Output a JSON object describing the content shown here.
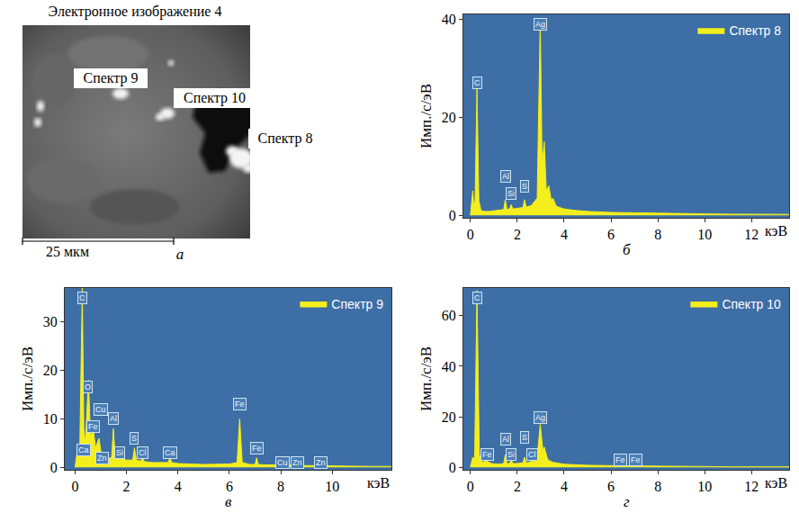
{
  "image_panel": {
    "letter": "а",
    "title": "Электронное изображение 4",
    "labels": [
      "Спектр 9",
      "Спектр 10",
      "Спектр 8"
    ],
    "scale_bar": "25 мкм"
  },
  "chart_data": [
    {
      "type": "area",
      "panel_letter": "б",
      "x_label": "кэВ",
      "y_label": "Имп./с/эВ",
      "x": [
        0,
        0.05,
        0.1,
        0.15,
        0.2,
        0.28,
        0.36,
        0.45,
        0.6,
        0.8,
        1.0,
        1.2,
        1.42,
        1.49,
        1.56,
        1.67,
        1.74,
        1.81,
        2.0,
        2.24,
        2.31,
        2.38,
        2.6,
        2.85,
        2.98,
        3.06,
        3.15,
        3.24,
        3.35,
        3.45,
        3.52,
        3.65,
        3.8,
        4.0,
        4.5,
        5,
        6,
        7,
        8,
        9,
        10,
        11,
        12,
        13,
        13.6
      ],
      "series": [
        {
          "name": "Спектр 8",
          "color": "#f4ee1c",
          "values": [
            0,
            2,
            5,
            1.5,
            3,
            26,
            3,
            1,
            0.8,
            0.8,
            0.9,
            1.0,
            1.2,
            3.2,
            1.2,
            1.3,
            2.2,
            1.3,
            1.4,
            1.6,
            3.2,
            1.7,
            2.0,
            3.5,
            40,
            10,
            15,
            5,
            6,
            3,
            3.5,
            2,
            1.6,
            1.3,
            1.0,
            0.8,
            0.6,
            0.5,
            0.4,
            0.35,
            0.3,
            0.25,
            0.2,
            0.2,
            0.2
          ]
        }
      ],
      "xlim": [
        -0.3,
        13.6
      ],
      "xticks": [
        0,
        2,
        4,
        6,
        8,
        10,
        12
      ],
      "ylim": [
        -0.5,
        41
      ],
      "yticks": [
        0,
        20,
        40
      ],
      "grid": false,
      "legend": "upper right",
      "annotations": [
        {
          "text": "C",
          "x": 0.28,
          "y": 27
        },
        {
          "text": "Al",
          "x": 1.49,
          "y": 8
        },
        {
          "text": "Si",
          "x": 1.74,
          "y": 4.5
        },
        {
          "text": "S",
          "x": 2.31,
          "y": 6
        },
        {
          "text": "Ag",
          "x": 2.98,
          "y": 39
        }
      ]
    },
    {
      "type": "area",
      "panel_letter": "в",
      "x_label": "кэВ",
      "y_label": "Имп./с/эВ",
      "x": [
        0,
        0.1,
        0.18,
        0.28,
        0.34,
        0.4,
        0.52,
        0.6,
        0.7,
        0.8,
        0.93,
        1.01,
        1.1,
        1.25,
        1.42,
        1.49,
        1.56,
        1.67,
        1.74,
        1.81,
        2.0,
        2.24,
        2.31,
        2.38,
        2.55,
        2.62,
        2.69,
        3.0,
        3.3,
        3.62,
        3.69,
        3.76,
        4.0,
        5.0,
        6.0,
        6.3,
        6.4,
        6.5,
        6.8,
        7.0,
        7.06,
        7.12,
        7.5,
        8.05,
        8.64,
        9.57,
        10.5,
        11.5,
        12.3
      ],
      "series": [
        {
          "name": "Спектр 9",
          "color": "#f4ee1c",
          "values": [
            0,
            4,
            3,
            37,
            8,
            5,
            18,
            6,
            8,
            4,
            6,
            3,
            2,
            1.8,
            2,
            8,
            2,
            1.8,
            3,
            1.8,
            1.5,
            1.5,
            4,
            1.5,
            1.3,
            2,
            1.2,
            1.0,
            1.0,
            1.0,
            2,
            1.0,
            0.8,
            0.6,
            0.7,
            1.0,
            10,
            1.0,
            0.6,
            0.6,
            2,
            0.6,
            0.5,
            0.6,
            0.4,
            0.3,
            0.2,
            0.2,
            0.2
          ]
        }
      ],
      "xlim": [
        -0.4,
        12.3
      ],
      "xticks": [
        0,
        2,
        4,
        6,
        8,
        10
      ],
      "ylim": [
        -0.5,
        37
      ],
      "yticks": [
        0,
        10,
        20,
        30
      ],
      "grid": false,
      "legend": "upper right",
      "annotations": [
        {
          "text": "C",
          "x": 0.28,
          "y": 35
        },
        {
          "text": "Ca",
          "x": 0.34,
          "y": 3.5
        },
        {
          "text": "O",
          "x": 0.5,
          "y": 16.5
        },
        {
          "text": "Cu",
          "x": 1.0,
          "y": 12
        },
        {
          "text": "Fe",
          "x": 0.7,
          "y": 8.5
        },
        {
          "text": "Zn",
          "x": 1.05,
          "y": 2
        },
        {
          "text": "Al",
          "x": 1.49,
          "y": 10
        },
        {
          "text": "Si",
          "x": 1.74,
          "y": 3
        },
        {
          "text": "S",
          "x": 2.31,
          "y": 6
        },
        {
          "text": "Cl",
          "x": 2.62,
          "y": 3
        },
        {
          "text": "Ca",
          "x": 3.69,
          "y": 3
        },
        {
          "text": "Fe",
          "x": 6.4,
          "y": 13
        },
        {
          "text": "Fe",
          "x": 7.06,
          "y": 4
        },
        {
          "text": "Cu",
          "x": 8.05,
          "y": 1
        },
        {
          "text": "Zn",
          "x": 8.64,
          "y": 1
        },
        {
          "text": "Zn",
          "x": 9.57,
          "y": 1
        }
      ]
    },
    {
      "type": "area",
      "panel_letter": "г",
      "x_label": "кэВ",
      "y_label": "Имп./с/эВ",
      "x": [
        0,
        0.1,
        0.18,
        0.28,
        0.38,
        0.5,
        0.7,
        0.9,
        1.2,
        1.42,
        1.49,
        1.56,
        1.67,
        1.74,
        1.81,
        2.0,
        2.24,
        2.31,
        2.38,
        2.55,
        2.62,
        2.69,
        2.85,
        2.98,
        3.1,
        3.15,
        3.3,
        3.5,
        4.0,
        5.0,
        6.4,
        7.06,
        8,
        9,
        10,
        11,
        12,
        13,
        13.6
      ],
      "series": [
        {
          "name": "Спектр 10",
          "color": "#f4ee1c",
          "values": [
            0,
            4,
            3,
            70,
            5,
            2,
            2.5,
            1.5,
            1.2,
            1.5,
            5,
            1.5,
            1.5,
            3,
            1.5,
            1.5,
            1.8,
            4,
            1.8,
            2,
            3,
            2,
            4,
            17,
            6,
            8,
            3,
            2,
            1.2,
            0.8,
            0.6,
            0.5,
            0.4,
            0.3,
            0.3,
            0.2,
            0.2,
            0.2,
            0.2
          ]
        }
      ],
      "xlim": [
        -0.3,
        13.6
      ],
      "xticks": [
        0,
        2,
        4,
        6,
        8,
        10,
        12
      ],
      "ylim": [
        -1,
        71
      ],
      "yticks": [
        0,
        20,
        40,
        60
      ],
      "grid": false,
      "legend": "upper right",
      "annotations": [
        {
          "text": "C",
          "x": 0.28,
          "y": 67
        },
        {
          "text": "Fe",
          "x": 0.7,
          "y": 5
        },
        {
          "text": "Al",
          "x": 1.49,
          "y": 11
        },
        {
          "text": "Si",
          "x": 1.74,
          "y": 5
        },
        {
          "text": "S",
          "x": 2.31,
          "y": 12
        },
        {
          "text": "Cl",
          "x": 2.62,
          "y": 5
        },
        {
          "text": "Ag",
          "x": 2.98,
          "y": 19.5
        },
        {
          "text": "Fe",
          "x": 6.4,
          "y": 3
        },
        {
          "text": "Fe",
          "x": 7.06,
          "y": 3
        }
      ]
    }
  ]
}
